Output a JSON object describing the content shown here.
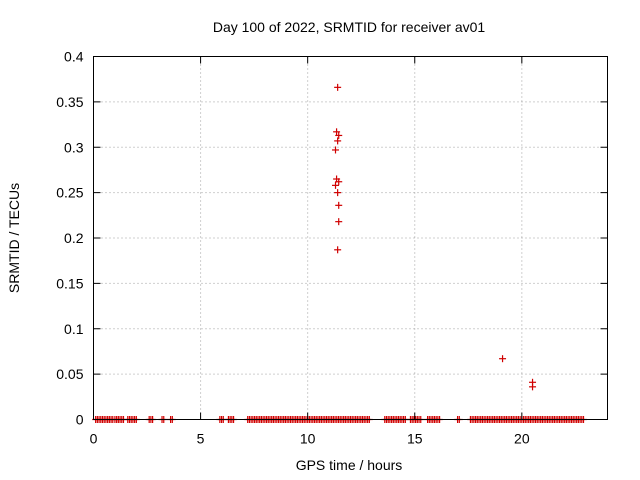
{
  "chart_data": {
    "type": "scatter",
    "title": "Day 100 of 2022, SRMTID for receiver av01",
    "xlabel": "GPS time / hours",
    "ylabel": "SRMTID / TECUs",
    "xlim": [
      0,
      24
    ],
    "ylim": [
      0,
      0.4
    ],
    "xticks": [
      0,
      5,
      10,
      15,
      20
    ],
    "xtick_labels": [
      "0",
      "5",
      "10",
      "15",
      "20"
    ],
    "yticks": [
      0,
      0.05,
      0.1,
      0.15,
      0.2,
      0.25,
      0.3,
      0.35,
      0.4
    ],
    "ytick_labels": [
      "0",
      "0.05",
      "0.1",
      "0.15",
      "0.2",
      "0.25",
      "0.3",
      "0.35",
      "0.4"
    ],
    "grid": true,
    "marker": "+",
    "marker_color": "#d00000",
    "series": [
      {
        "name": "SRMTID",
        "points": [
          [
            11.4,
            0.366
          ],
          [
            11.35,
            0.317
          ],
          [
            11.45,
            0.313
          ],
          [
            11.4,
            0.307
          ],
          [
            11.3,
            0.297
          ],
          [
            11.35,
            0.265
          ],
          [
            11.45,
            0.262
          ],
          [
            11.3,
            0.258
          ],
          [
            11.4,
            0.25
          ],
          [
            11.45,
            0.236
          ],
          [
            11.45,
            0.218
          ],
          [
            11.4,
            0.187
          ],
          [
            19.1,
            0.067
          ],
          [
            20.5,
            0.041
          ],
          [
            20.5,
            0.036
          ]
        ],
        "baseline_ranges": [
          [
            0.1,
            0.9
          ],
          [
            1.0,
            1.4
          ],
          [
            1.6,
            2.0
          ],
          [
            2.6,
            2.8
          ],
          [
            3.2,
            3.3
          ],
          [
            3.6,
            3.7
          ],
          [
            5.9,
            6.1
          ],
          [
            6.3,
            6.6
          ],
          [
            7.2,
            12.9
          ],
          [
            13.6,
            14.6
          ],
          [
            14.8,
            15.3
          ],
          [
            15.6,
            16.2
          ],
          [
            17.0,
            17.1
          ],
          [
            17.6,
            22.9
          ]
        ],
        "baseline_value": 0
      }
    ]
  }
}
